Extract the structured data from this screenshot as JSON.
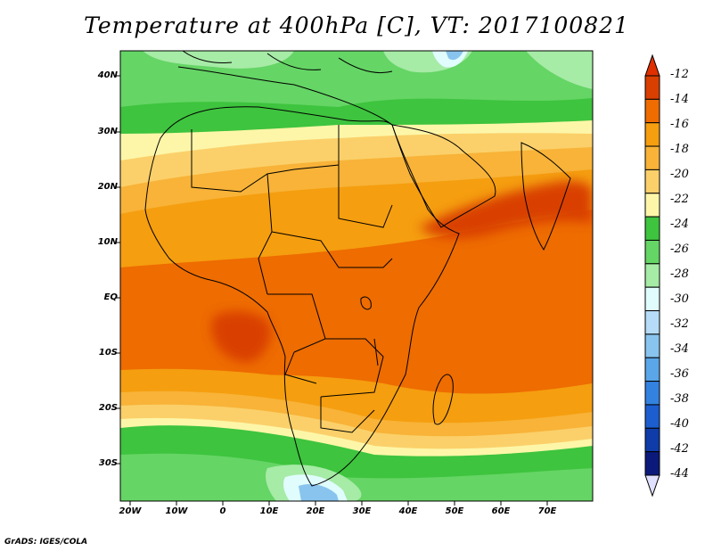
{
  "title": "Temperature at 400hPa [C], VT: 2017100821",
  "footer": "GrADS: IGES/COLA",
  "lat_labels": [
    "40N",
    "30N",
    "20N",
    "10N",
    "EQ",
    "10S",
    "20S",
    "30S"
  ],
  "lon_labels": [
    "20W",
    "10W",
    "0",
    "10E",
    "20E",
    "30E",
    "40E",
    "50E",
    "60E",
    "70E"
  ],
  "colorbar": {
    "labels": [
      "-12",
      "-14",
      "-16",
      "-18",
      "-20",
      "-22",
      "-24",
      "-26",
      "-28",
      "-30",
      "-32",
      "-34",
      "-36",
      "-38",
      "-40",
      "-42",
      "-44"
    ],
    "colors": [
      "#d93f00",
      "#ee6c00",
      "#f59e0f",
      "#f8b338",
      "#fbd06a",
      "#fdf6a8",
      "#3ec43e",
      "#65d565",
      "#a6eba6",
      "#e0fcfc",
      "#b6dcf7",
      "#88c4ee",
      "#5aa6e8",
      "#3482e0",
      "#1c5ed0",
      "#0f3ca8",
      "#0b1a7a"
    ],
    "top_arrow_color": "#e03000",
    "bottom_arrow_color": "#e0e0ff"
  },
  "map": {
    "region": "Africa and surrounding oceans",
    "lon_range": [
      -22,
      80
    ],
    "lat_range": [
      -37,
      45
    ],
    "grid": false,
    "hotspots": [
      "Red Sea / Arabian region (-14 to -12)",
      "Gulf of Guinea / Angola offshore (-14 to -12)"
    ]
  }
}
